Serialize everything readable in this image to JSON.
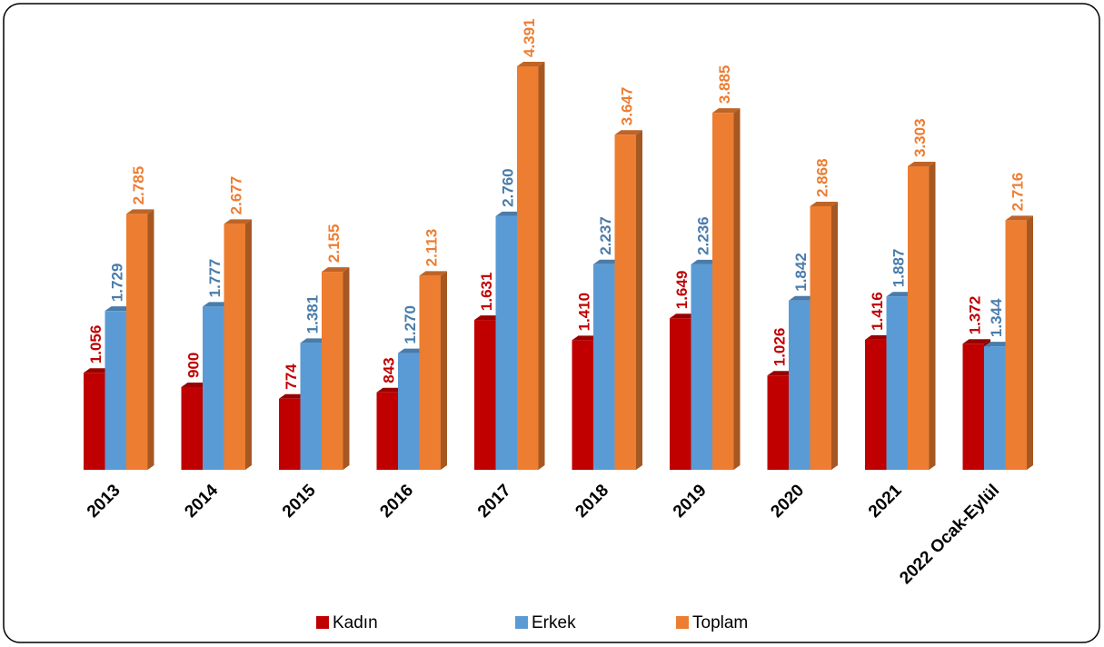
{
  "chart_data": {
    "type": "bar3d",
    "categories": [
      "2013",
      "2014",
      "2015",
      "2016",
      "2017",
      "2018",
      "2019",
      "2020",
      "2021",
      "2022 Ocak-Eylül"
    ],
    "series": [
      {
        "name": "Kadın",
        "color": "#c00000",
        "values": [
          1056,
          900,
          774,
          843,
          1631,
          1410,
          1649,
          1026,
          1416,
          1372
        ],
        "value_labels": [
          "1.056",
          "900",
          "774",
          "843",
          "1.631",
          "1.410",
          "1.649",
          "1.026",
          "1.416",
          "1.372"
        ]
      },
      {
        "name": "Erkek",
        "color": "#5b9bd5",
        "values": [
          1729,
          1777,
          1381,
          1270,
          2760,
          2237,
          2236,
          1842,
          1887,
          1344
        ],
        "value_labels": [
          "1.729",
          "1.777",
          "1.381",
          "1.270",
          "2.760",
          "2.237",
          "2.236",
          "1.842",
          "1.887",
          "1.344"
        ]
      },
      {
        "name": "Toplam",
        "color": "#ed7d31",
        "values": [
          2785,
          2677,
          2155,
          2113,
          4391,
          3647,
          3885,
          2868,
          3303,
          2716
        ],
        "value_labels": [
          "2.785",
          "2.677",
          "2.155",
          "2.113",
          "4.391",
          "3.647",
          "3.885",
          "2.868",
          "3.303",
          "2.716"
        ]
      }
    ]
  }
}
